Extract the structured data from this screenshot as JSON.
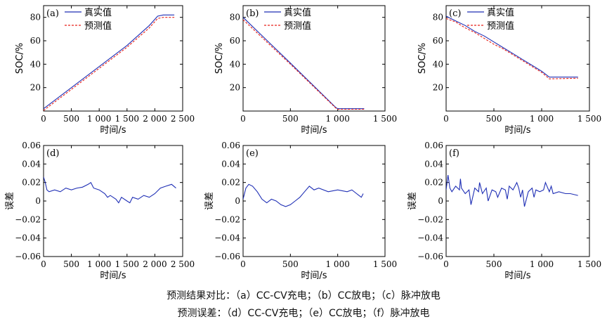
{
  "captions": [
    "预测结果对比：（a）CC-CV充电；（b）CC放电；（c）脉冲放电",
    "预测误差：（d）CC-CV充电；（e）CC放电；（f）脉冲放电"
  ],
  "colors": {
    "true": "#1f2fb5",
    "pred": "#e8201a",
    "error": "#1f2fb5"
  },
  "chart_data": [
    {
      "id": "a",
      "type": "line",
      "panel_label": "(a)",
      "xlabel": "时间/s",
      "ylabel": "SOC/%",
      "xlim": [
        0,
        2500
      ],
      "ylim": [
        0,
        90
      ],
      "xticks": [
        0,
        500,
        1000,
        1500,
        2000,
        2500
      ],
      "xtick_labels": [
        "0",
        "500",
        "1 000",
        "1 500",
        "2 000",
        "2 500"
      ],
      "yticks": [
        20,
        40,
        60,
        80
      ],
      "ytick_labels": [
        "20",
        "40",
        "60",
        "80"
      ],
      "legend": [
        "真实值",
        "预测值"
      ],
      "series": [
        {
          "name": "真实值",
          "style": "solid",
          "x": [
            0,
            500,
            1000,
            1500,
            1900,
            2050,
            2150,
            2350
          ],
          "y": [
            2,
            20,
            38,
            56,
            73,
            81,
            82,
            82
          ]
        },
        {
          "name": "预测值",
          "style": "dashed",
          "x": [
            0,
            500,
            1000,
            1500,
            1900,
            2050,
            2150,
            2350
          ],
          "y": [
            0.5,
            18.5,
            36.5,
            54.5,
            71,
            79,
            80,
            80
          ]
        }
      ]
    },
    {
      "id": "b",
      "type": "line",
      "panel_label": "(b)",
      "xlabel": "时间/s",
      "ylabel": "SOC/%",
      "xlim": [
        0,
        1500
      ],
      "ylim": [
        0,
        90
      ],
      "xticks": [
        0,
        500,
        1000,
        1500
      ],
      "xtick_labels": [
        "0",
        "500",
        "1 000",
        "1 500"
      ],
      "yticks": [
        20,
        40,
        60,
        80
      ],
      "ytick_labels": [
        "20",
        "40",
        "60",
        "80"
      ],
      "legend": [
        "真实值",
        "预测值"
      ],
      "series": [
        {
          "name": "真实值",
          "style": "solid",
          "x": [
            0,
            500,
            980,
            1000,
            1280
          ],
          "y": [
            80,
            41,
            3,
            2,
            2
          ]
        },
        {
          "name": "预测值",
          "style": "dashed",
          "x": [
            0,
            500,
            980,
            1000,
            1280
          ],
          "y": [
            78,
            40,
            2.5,
            1.5,
            1.5
          ]
        }
      ]
    },
    {
      "id": "c",
      "type": "line",
      "panel_label": "(c)",
      "xlabel": "时间/s",
      "ylabel": "SOC/%",
      "xlim": [
        0,
        1500
      ],
      "ylim": [
        0,
        90
      ],
      "xticks": [
        0,
        500,
        1000,
        1500
      ],
      "xtick_labels": [
        "0",
        "500",
        "1 000",
        "1 500"
      ],
      "yticks": [
        20,
        40,
        60,
        80
      ],
      "ytick_labels": [
        "20",
        "40",
        "60",
        "80"
      ],
      "legend": [
        "真实值",
        "预测值"
      ],
      "series": [
        {
          "name": "真实值",
          "style": "solid",
          "x": [
            0,
            100,
            200,
            300,
            400,
            500,
            600,
            700,
            800,
            900,
            1000,
            1080,
            1380
          ],
          "y": [
            81,
            77,
            73,
            68,
            64,
            59,
            54,
            49,
            44,
            39,
            34,
            29,
            29
          ]
        },
        {
          "name": "预测值",
          "style": "dashed",
          "x": [
            0,
            100,
            200,
            300,
            400,
            500,
            600,
            700,
            800,
            900,
            1000,
            1080,
            1380
          ],
          "y": [
            79,
            76,
            71,
            67,
            62,
            57,
            53,
            48,
            43,
            38,
            33,
            27.5,
            28
          ]
        }
      ]
    },
    {
      "id": "d",
      "type": "line",
      "panel_label": "(d)",
      "xlabel": "时间/s",
      "ylabel": "误差",
      "xlim": [
        0,
        2500
      ],
      "ylim": [
        -0.06,
        0.06
      ],
      "xticks": [
        0,
        500,
        1000,
        1500,
        2000,
        2500
      ],
      "xtick_labels": [
        "0",
        "500",
        "1 000",
        "1 500",
        "2 000",
        "2 500"
      ],
      "yticks": [
        -0.06,
        -0.04,
        -0.02,
        0,
        0.02,
        0.04,
        0.06
      ],
      "ytick_labels": [
        "−0.06",
        "−0.04",
        "−0.02",
        "0",
        "0.02",
        "0.04",
        "0.06"
      ],
      "series": [
        {
          "name": "",
          "style": "solid",
          "x": [
            0,
            30,
            60,
            100,
            200,
            300,
            400,
            500,
            600,
            700,
            800,
            850,
            900,
            1000,
            1100,
            1150,
            1200,
            1300,
            1350,
            1400,
            1500,
            1550,
            1600,
            1700,
            1800,
            1900,
            2000,
            2100,
            2200,
            2300,
            2380
          ],
          "y": [
            0.026,
            0.02,
            0.012,
            0.01,
            0.012,
            0.01,
            0.014,
            0.012,
            0.014,
            0.015,
            0.018,
            0.02,
            0.014,
            0.012,
            0.008,
            0.004,
            0.006,
            0.002,
            -0.002,
            0.004,
            0.0,
            -0.002,
            0.004,
            0.002,
            0.006,
            0.004,
            0.008,
            0.014,
            0.016,
            0.018,
            0.014
          ]
        }
      ]
    },
    {
      "id": "e",
      "type": "line",
      "panel_label": "(e)",
      "xlabel": "时间/s",
      "ylabel": "误差",
      "xlim": [
        0,
        1500
      ],
      "ylim": [
        -0.06,
        0.06
      ],
      "xticks": [
        0,
        500,
        1000,
        1500
      ],
      "xtick_labels": [
        "0",
        "500",
        "1 000",
        "1 500"
      ],
      "yticks": [
        -0.06,
        -0.04,
        -0.02,
        0,
        0.02,
        0.04,
        0.06
      ],
      "ytick_labels": [
        "−0.06",
        "−0.04",
        "−0.02",
        "0",
        "0.02",
        "0.04",
        "0.06"
      ],
      "series": [
        {
          "name": "",
          "style": "solid",
          "x": [
            0,
            30,
            60,
            100,
            150,
            200,
            250,
            300,
            350,
            400,
            450,
            500,
            550,
            600,
            650,
            700,
            750,
            800,
            900,
            1000,
            1100,
            1150,
            1200,
            1250,
            1270
          ],
          "y": [
            0.002,
            0.014,
            0.018,
            0.016,
            0.01,
            0.002,
            -0.002,
            0.002,
            0.0,
            -0.004,
            -0.006,
            -0.004,
            0.0,
            0.004,
            0.01,
            0.016,
            0.012,
            0.014,
            0.01,
            0.012,
            0.01,
            0.012,
            0.008,
            0.004,
            0.008
          ]
        }
      ]
    },
    {
      "id": "f",
      "type": "line",
      "panel_label": "(f)",
      "xlabel": "时间/s",
      "ylabel": "误差",
      "xlim": [
        0,
        1500
      ],
      "ylim": [
        -0.06,
        0.06
      ],
      "xticks": [
        0,
        500,
        1000,
        1500
      ],
      "xtick_labels": [
        "0",
        "500",
        "1 000",
        "1 500"
      ],
      "yticks": [
        -0.06,
        -0.04,
        -0.02,
        0,
        0.02,
        0.04,
        0.06
      ],
      "ytick_labels": [
        "−0.06",
        "−0.04",
        "−0.02",
        "0",
        "0.02",
        "0.04",
        "0.06"
      ],
      "series": [
        {
          "name": "",
          "style": "solid",
          "x": [
            0,
            20,
            40,
            60,
            100,
            140,
            150,
            160,
            200,
            240,
            260,
            300,
            340,
            350,
            380,
            420,
            440,
            480,
            520,
            540,
            580,
            620,
            640,
            660,
            700,
            740,
            760,
            780,
            800,
            820,
            860,
            900,
            920,
            940,
            980,
            1020,
            1040,
            1080,
            1100,
            1120,
            1180,
            1250,
            1300,
            1380
          ],
          "y": [
            0.012,
            0.028,
            0.014,
            0.01,
            0.016,
            0.012,
            0.024,
            0.014,
            0.008,
            0.012,
            -0.004,
            0.014,
            0.01,
            0.02,
            0.008,
            0.014,
            0.0,
            0.012,
            0.01,
            0.004,
            0.014,
            0.012,
            0.002,
            0.016,
            0.012,
            0.02,
            0.014,
            0.004,
            0.012,
            -0.006,
            0.01,
            0.014,
            0.004,
            0.012,
            0.01,
            0.012,
            0.02,
            0.01,
            0.016,
            0.008,
            0.01,
            0.008,
            0.008,
            0.006
          ]
        }
      ]
    }
  ]
}
